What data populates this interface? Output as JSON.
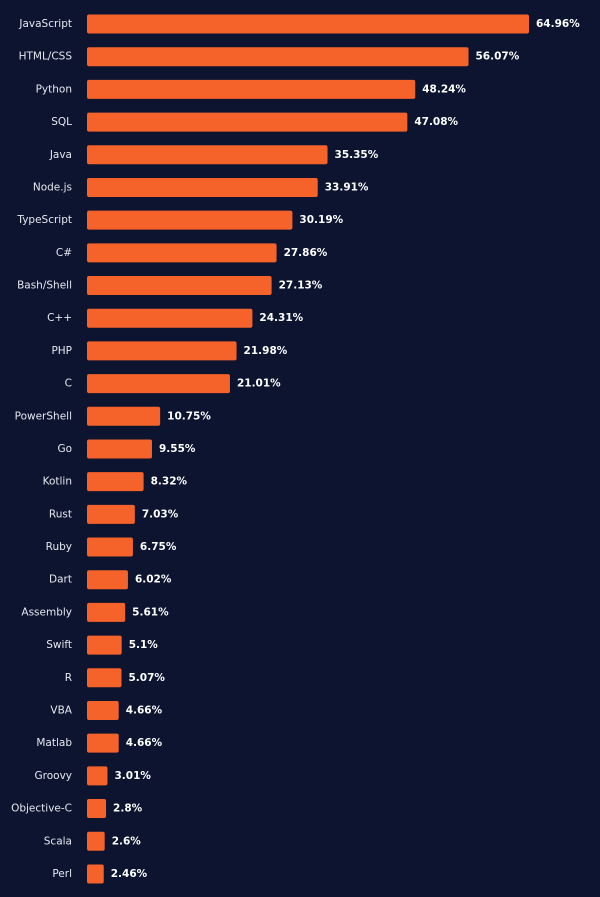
{
  "chart_data": {
    "type": "bar",
    "orientation": "horizontal",
    "title": "",
    "xlabel": "",
    "ylabel": "",
    "xlim": [
      0,
      65
    ],
    "grid": false,
    "value_suffix": "%",
    "bar_color": "#f5622a",
    "background": "#0c1430",
    "categories": [
      "JavaScript",
      "HTML/CSS",
      "Python",
      "SQL",
      "Java",
      "Node.js",
      "TypeScript",
      "C#",
      "Bash/Shell",
      "C++",
      "PHP",
      "C",
      "PowerShell",
      "Go",
      "Kotlin",
      "Rust",
      "Ruby",
      "Dart",
      "Assembly",
      "Swift",
      "R",
      "VBA",
      "Matlab",
      "Groovy",
      "Objective-C",
      "Scala",
      "Perl"
    ],
    "values": [
      64.96,
      56.07,
      48.24,
      47.08,
      35.35,
      33.91,
      30.19,
      27.86,
      27.13,
      24.31,
      21.98,
      21.01,
      10.75,
      9.55,
      8.32,
      7.03,
      6.75,
      6.02,
      5.61,
      5.1,
      5.07,
      4.66,
      4.66,
      3.01,
      2.8,
      2.6,
      2.46
    ],
    "value_labels": [
      "64.96%",
      "56.07%",
      "48.24%",
      "47.08%",
      "35.35%",
      "33.91%",
      "30.19%",
      "27.86%",
      "27.13%",
      "24.31%",
      "21.98%",
      "21.01%",
      "10.75%",
      "9.55%",
      "8.32%",
      "7.03%",
      "6.75%",
      "6.02%",
      "5.61%",
      "5.1%",
      "5.07%",
      "4.66%",
      "4.66%",
      "3.01%",
      "2.8%",
      "2.6%",
      "2.46%"
    ]
  }
}
